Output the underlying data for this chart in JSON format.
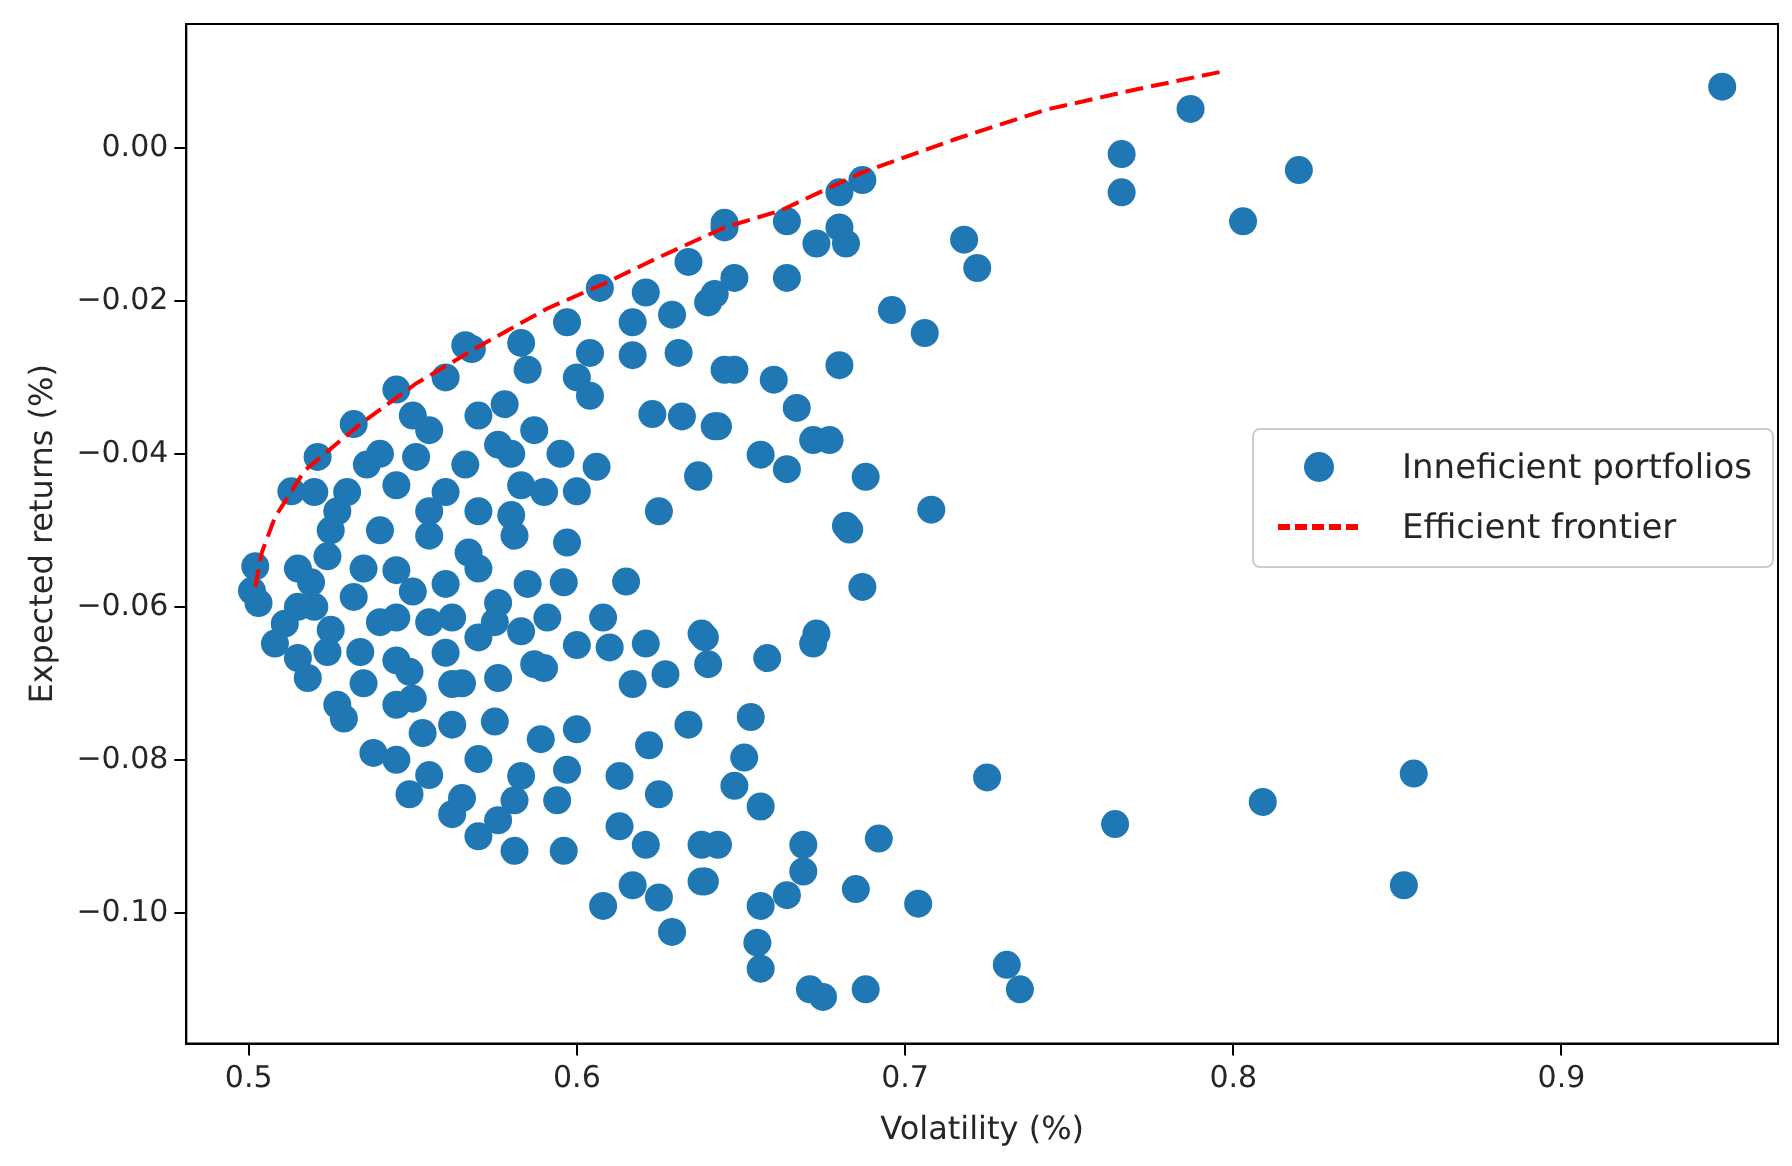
{
  "chart_data": {
    "type": "scatter",
    "xlabel": "Volatility (%)",
    "ylabel": "Expected returns (%)",
    "xlim": [
      0.481,
      0.966
    ],
    "ylim": [
      -0.1171,
      0.0162
    ],
    "xticks": [
      0.5,
      0.6,
      0.7,
      0.8,
      0.9
    ],
    "yticks": [
      {
        "value": 0,
        "label": "0.00"
      },
      {
        "value": -0.02,
        "label": "−0.02"
      },
      {
        "value": -0.04,
        "label": "−0.04"
      },
      {
        "value": -0.06,
        "label": "−0.06"
      },
      {
        "value": -0.08,
        "label": "−0.08"
      },
      {
        "value": -0.1,
        "label": "−0.10"
      }
    ],
    "grid": false,
    "legend": "right",
    "marker": "circle",
    "series": [
      {
        "name": "Inneficient portfolios",
        "type": "scatter",
        "color": "#1f77b4",
        "x": [
          0.949,
          0.787,
          0.766,
          0.766,
          0.82,
          0.803,
          0.718,
          0.722,
          0.687,
          0.68,
          0.68,
          0.673,
          0.682,
          0.664,
          0.664,
          0.648,
          0.64,
          0.645,
          0.696,
          0.706,
          0.68,
          0.648,
          0.66,
          0.667,
          0.643,
          0.672,
          0.677,
          0.656,
          0.664,
          0.688,
          0.708,
          0.682,
          0.637,
          0.683,
          0.687,
          0.673,
          0.672,
          0.658,
          0.639,
          0.64,
          0.653,
          0.651,
          0.648,
          0.656,
          0.725,
          0.764,
          0.809,
          0.855,
          0.852,
          0.643,
          0.669,
          0.692,
          0.669,
          0.639,
          0.664,
          0.656,
          0.685,
          0.704,
          0.655,
          0.656,
          0.671,
          0.675,
          0.688,
          0.731,
          0.735,
          0.567,
          0.597,
          0.596,
          0.615,
          0.608,
          0.638,
          0.61,
          0.621,
          0.627,
          0.617,
          0.634,
          0.622,
          0.6,
          0.589,
          0.597,
          0.613,
          0.583,
          0.594,
          0.625,
          0.613,
          0.621,
          0.638,
          0.638,
          0.617,
          0.608,
          0.625,
          0.629,
          0.596,
          0.581,
          0.562,
          0.549,
          0.538,
          0.529,
          0.527,
          0.518,
          0.508,
          0.503,
          0.501,
          0.502,
          0.562,
          0.57,
          0.581,
          0.576,
          0.545,
          0.553,
          0.524,
          0.534,
          0.549,
          0.562,
          0.576,
          0.57,
          0.587,
          0.583,
          0.591,
          0.576,
          0.562,
          0.545,
          0.532,
          0.519,
          0.524,
          0.545,
          0.555,
          0.581,
          0.511,
          0.515,
          0.645,
          0.634,
          0.642,
          0.621,
          0.629,
          0.617,
          0.607,
          0.597,
          0.583,
          0.568,
          0.604,
          0.617,
          0.631,
          0.645,
          0.604,
          0.585,
          0.578,
          0.623,
          0.632,
          0.642,
          0.606,
          0.637,
          0.6,
          0.625,
          0.566,
          0.545,
          0.532,
          0.521,
          0.513,
          0.555,
          0.566,
          0.576,
          0.583,
          0.545,
          0.527,
          0.555,
          0.57,
          0.587,
          0.551,
          0.536,
          0.515,
          0.52,
          0.525,
          0.53,
          0.535,
          0.54,
          0.54,
          0.545,
          0.55,
          0.55,
          0.555,
          0.555,
          0.56,
          0.56,
          0.56,
          0.565,
          0.565,
          0.57,
          0.57,
          0.575,
          0.575,
          0.58,
          0.58,
          0.585,
          0.59,
          0.59,
          0.54,
          0.55,
          0.56,
          0.535,
          0.525,
          0.515,
          0.52,
          0.545,
          0.57,
          0.6,
          0.595,
          0.6
        ],
        "values": [
          0.008,
          0.0051,
          -0.0008,
          -0.0058,
          -0.0029,
          -0.0096,
          -0.012,
          -0.0157,
          -0.0042,
          -0.0058,
          -0.0104,
          -0.0125,
          -0.0125,
          -0.0096,
          -0.017,
          -0.017,
          -0.0202,
          -0.0104,
          -0.0212,
          -0.0242,
          -0.0284,
          -0.029,
          -0.0303,
          -0.034,
          -0.0364,
          -0.0382,
          -0.0382,
          -0.0401,
          -0.042,
          -0.043,
          -0.0473,
          -0.0494,
          -0.043,
          -0.0499,
          -0.0574,
          -0.0635,
          -0.0648,
          -0.0667,
          -0.064,
          -0.0675,
          -0.0744,
          -0.0797,
          -0.0834,
          -0.0861,
          -0.0823,
          -0.0884,
          -0.0855,
          -0.0818,
          -0.0964,
          -0.0911,
          -0.0911,
          -0.0903,
          -0.0946,
          -0.0959,
          -0.0977,
          -0.0991,
          -0.0969,
          -0.0988,
          -0.1039,
          -0.1073,
          -0.11,
          -0.111,
          -0.11,
          -0.1068,
          -0.11,
          -0.0529,
          -0.0516,
          -0.0568,
          -0.0567,
          -0.0614,
          -0.0635,
          -0.0653,
          -0.0648,
          -0.0688,
          -0.0701,
          -0.0754,
          -0.0781,
          -0.076,
          -0.0773,
          -0.0813,
          -0.0821,
          -0.0821,
          -0.0853,
          -0.0845,
          -0.0887,
          -0.0911,
          -0.0911,
          -0.0959,
          -0.0964,
          -0.0991,
          -0.098,
          -0.1025,
          -0.0919,
          -0.0919,
          -0.0871,
          -0.0845,
          -0.0791,
          -0.0746,
          -0.0728,
          -0.0693,
          -0.0648,
          -0.0595,
          -0.0579,
          -0.0547,
          -0.0754,
          -0.0799,
          -0.0853,
          -0.0879,
          -0.0728,
          -0.0765,
          -0.0659,
          -0.0659,
          -0.0685,
          -0.0701,
          -0.0693,
          -0.064,
          -0.0675,
          -0.0632,
          -0.0614,
          -0.0595,
          -0.0614,
          -0.0614,
          -0.0587,
          -0.0568,
          -0.0534,
          -0.0552,
          -0.0507,
          -0.0507,
          -0.0622,
          -0.0667,
          -0.0098,
          -0.0149,
          -0.0191,
          -0.0189,
          -0.0218,
          -0.0228,
          -0.0183,
          -0.0228,
          -0.0255,
          -0.0263,
          -0.0268,
          -0.0271,
          -0.0268,
          -0.029,
          -0.0324,
          -0.029,
          -0.0335,
          -0.0348,
          -0.0351,
          -0.0364,
          -0.0417,
          -0.0428,
          -0.0449,
          -0.0475,
          -0.0258,
          -0.0316,
          -0.0361,
          -0.0404,
          -0.0449,
          -0.0369,
          -0.0414,
          -0.0388,
          -0.0441,
          -0.0441,
          -0.0475,
          -0.0475,
          -0.0475,
          -0.0369,
          -0.0404,
          -0.0414,
          -0.055,
          -0.06,
          -0.05,
          -0.045,
          -0.055,
          -0.05,
          -0.062,
          -0.067,
          -0.058,
          -0.072,
          -0.062,
          -0.082,
          -0.045,
          -0.057,
          -0.066,
          -0.07,
          -0.085,
          -0.055,
          -0.035,
          -0.062,
          -0.075,
          -0.04,
          -0.048,
          -0.057,
          -0.068,
          -0.045,
          -0.04,
          -0.035,
          -0.03,
          -0.07,
          -0.063,
          -0.06,
          -0.045,
          -0.08,
          -0.09,
          -0.065,
          -0.04,
          -0.03
        ]
      },
      {
        "name": "Efficient frontier",
        "type": "line",
        "color": "#ff0000",
        "line_style": "dashed",
        "marker": "none",
        "x": [
          0.502,
          0.504,
          0.508,
          0.517,
          0.534,
          0.551,
          0.572,
          0.591,
          0.608,
          0.625,
          0.645,
          0.662,
          0.687,
          0.715,
          0.743,
          0.771,
          0.798
        ],
        "values": [
          -0.0574,
          -0.0529,
          -0.0483,
          -0.0422,
          -0.0361,
          -0.0308,
          -0.0255,
          -0.021,
          -0.0178,
          -0.0143,
          -0.0104,
          -0.0082,
          -0.0032,
          0.0011,
          0.005,
          0.0077,
          0.0101
        ]
      }
    ]
  }
}
